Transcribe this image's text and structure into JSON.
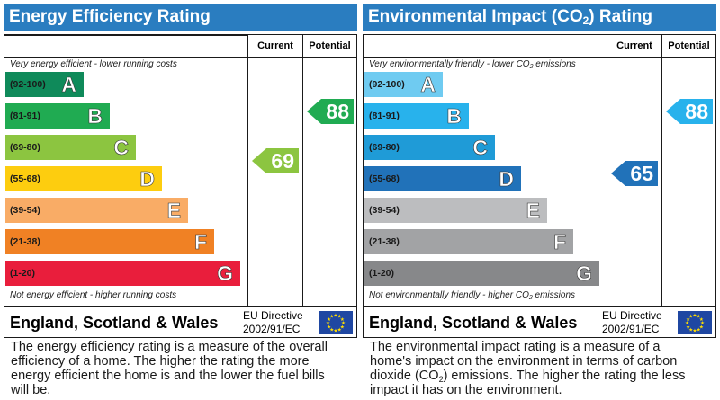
{
  "energy": {
    "title": "Energy Efficiency Rating",
    "col_current": "Current",
    "col_potential": "Potential",
    "caption_top": "Very energy efficient - lower running costs",
    "caption_bottom": "Not energy efficient - higher running costs",
    "bands": [
      {
        "range": "(92-100)",
        "letter": "A",
        "color": "#0f8a5a"
      },
      {
        "range": "(81-91)",
        "letter": "B",
        "color": "#20ab52"
      },
      {
        "range": "(69-80)",
        "letter": "C",
        "color": "#8cc540"
      },
      {
        "range": "(55-68)",
        "letter": "D",
        "color": "#fdcd0f"
      },
      {
        "range": "(39-54)",
        "letter": "E",
        "color": "#f9ac66"
      },
      {
        "range": "(21-38)",
        "letter": "F",
        "color": "#f08124"
      },
      {
        "range": "(1-20)",
        "letter": "G",
        "color": "#e91e3c"
      }
    ],
    "current": {
      "value": "69",
      "color": "#8cc540",
      "band": "C"
    },
    "potential": {
      "value": "88",
      "color": "#20ab52",
      "band": "B"
    },
    "region": "England, Scotland & Wales",
    "eu_line1": "EU Directive",
    "eu_line2": "2002/91/EC",
    "description": "The energy efficiency rating is a measure of the overall efficiency of a home. The higher the rating the more energy efficient the home is and the lower the fuel bills will be."
  },
  "environment": {
    "title_prefix": "Environmental Impact (CO",
    "title_sub": "2",
    "title_suffix": ") Rating",
    "col_current": "Current",
    "col_potential": "Potential",
    "caption_top_prefix": "Very environmentally friendly - lower CO",
    "caption_top_sub": "2",
    "caption_top_suffix": " emissions",
    "caption_bottom_prefix": "Not environmentally friendly - higher CO",
    "caption_bottom_sub": "2",
    "caption_bottom_suffix": " emissions",
    "bands": [
      {
        "range": "(92-100)",
        "letter": "A",
        "color": "#6fcbf1"
      },
      {
        "range": "(81-91)",
        "letter": "B",
        "color": "#28b2ec"
      },
      {
        "range": "(69-80)",
        "letter": "C",
        "color": "#1f9bd7"
      },
      {
        "range": "(55-68)",
        "letter": "D",
        "color": "#2172b9"
      },
      {
        "range": "(39-54)",
        "letter": "E",
        "color": "#bcbdbf"
      },
      {
        "range": "(21-38)",
        "letter": "F",
        "color": "#a2a3a5"
      },
      {
        "range": "(1-20)",
        "letter": "G",
        "color": "#87888a"
      }
    ],
    "current": {
      "value": "65",
      "color": "#2172b9",
      "band": "D"
    },
    "potential": {
      "value": "88",
      "color": "#28b2ec",
      "band": "B"
    },
    "region": "England, Scotland & Wales",
    "eu_line1": "EU Directive",
    "eu_line2": "2002/91/EC",
    "desc_prefix": "The environmental impact rating is a measure of a home's impact on the environment in terms of carbon dioxide (CO",
    "desc_sub": "2",
    "desc_suffix": ") emissions. The higher the rating the less impact it has on the environment."
  }
}
